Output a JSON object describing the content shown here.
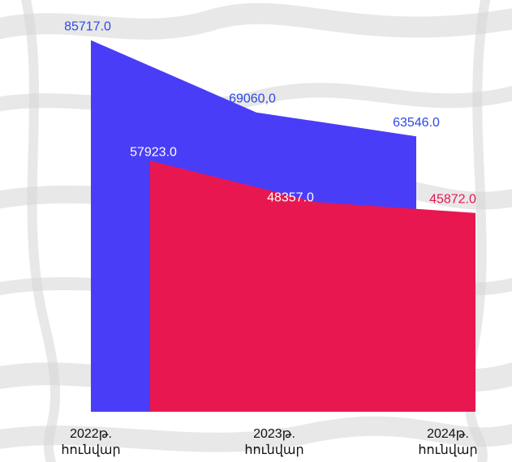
{
  "chart_data": {
    "type": "area",
    "categories": [
      [
        "2022թ.",
        "հունվար"
      ],
      [
        "2023թ.",
        "հունվար"
      ],
      [
        "2024թ.",
        "հունվար"
      ]
    ],
    "series": [
      {
        "color": "#4a3df7",
        "values": [
          85717.0,
          69060.0,
          63546.0
        ],
        "labels": [
          "85717.0",
          "69060,0",
          "63546.0"
        ],
        "label_color": "#2d48e6"
      },
      {
        "color": "#e8174f",
        "values": [
          57923.0,
          48357.0,
          45872.0
        ],
        "labels": [
          "57923.0",
          "48357.0",
          "45872.0"
        ],
        "label_color": [
          "#ffffff",
          "#ffffff",
          "#e8174f"
        ]
      }
    ],
    "ylim": [
      0,
      95000
    ],
    "grid": false,
    "legend": "none"
  }
}
